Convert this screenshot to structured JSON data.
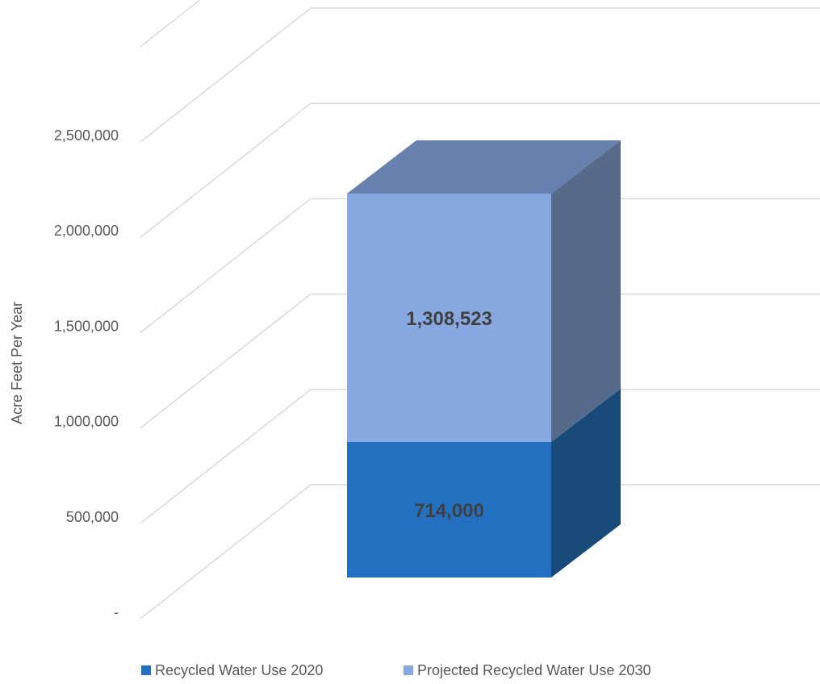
{
  "chart_data": {
    "type": "bar",
    "stacked": true,
    "three_d": true,
    "title": "",
    "xlabel": "",
    "ylabel": "Acre Feet Per Year",
    "ylim": [
      0,
      3000000
    ],
    "yticks": [
      0,
      500000,
      1000000,
      1500000,
      2000000,
      2500000
    ],
    "ytick_labels": [
      "-",
      "500,000",
      "1,000,000",
      "1,500,000",
      "2,000,000",
      "2,500,000"
    ],
    "categories": [
      ""
    ],
    "series": [
      {
        "name": "Recycled Water Use 2020",
        "values": [
          714000
        ],
        "data_label": "714,000",
        "color": "#2270bf",
        "side_color": "#184a7a",
        "top_color": "#1e5ea0"
      },
      {
        "name": "Projected Recycled Water Use 2030",
        "values": [
          1308523
        ],
        "data_label": "1,308,523",
        "color": "#87a8e0",
        "side_color": "#566a8c",
        "top_color": "#6880ad"
      }
    ],
    "grid": true,
    "legend": "bottom",
    "gridline_color": "#d9d9d9"
  }
}
